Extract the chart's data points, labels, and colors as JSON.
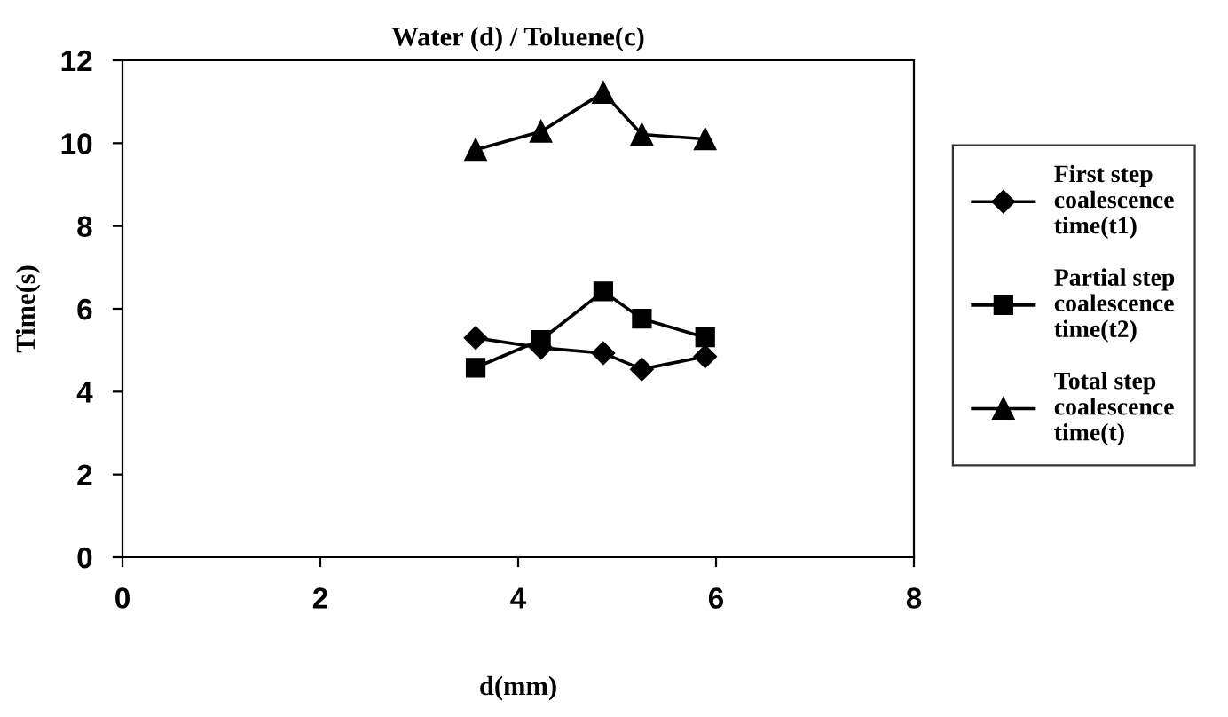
{
  "chart_data": {
    "type": "line",
    "title": "Water (d) / Toluene(c)",
    "xlabel": "d(mm)",
    "ylabel": "Time(s)",
    "xlim": [
      0,
      8
    ],
    "xticks": [
      0,
      2,
      4,
      6,
      8
    ],
    "ylim": [
      0,
      12
    ],
    "yticks": [
      0,
      2,
      4,
      6,
      8,
      10,
      12
    ],
    "x": [
      3.57,
      4.23,
      4.86,
      5.25,
      5.89
    ],
    "grid": false,
    "legend": "right",
    "series": [
      {
        "name": "First step\ncoalescence\ntime(t1)",
        "color": "#000000",
        "marker": "diamond",
        "values": [
          5.3,
          5.06,
          4.93,
          4.54,
          4.85
        ]
      },
      {
        "name": "Partial step\ncoalescence\ntime(t2)",
        "color": "#000000",
        "marker": "square",
        "values": [
          4.58,
          5.25,
          6.42,
          5.76,
          5.31
        ]
      },
      {
        "name": "Total step\ncoalescence\ntime(t)",
        "color": "#000000",
        "marker": "triangle",
        "values": [
          9.84,
          10.28,
          11.22,
          10.21,
          10.1
        ]
      }
    ]
  }
}
